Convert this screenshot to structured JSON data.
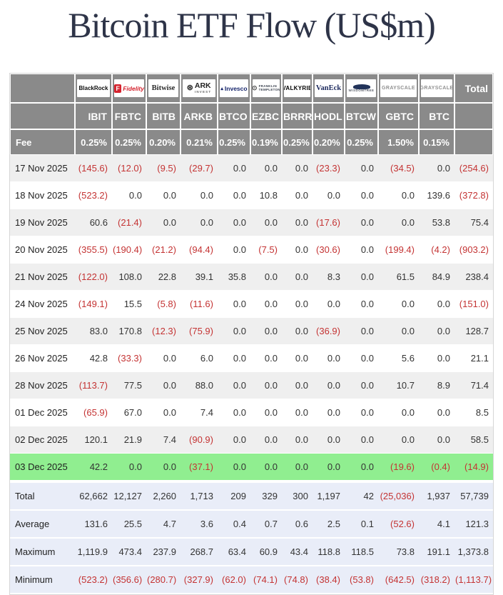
{
  "page": {
    "title": "Bitcoin ETF Flow (US$m)"
  },
  "colors": {
    "header_bg": "#8a8a8a",
    "negative_text": "#c43333",
    "positive_text": "#333333",
    "highlight_row": "#90ee90",
    "summary_row_bg": "#e9edf8",
    "stripe_row_bg": "#efefef",
    "title_text": "#2e3448"
  },
  "table": {
    "labels": {
      "fee_row": "Fee",
      "total_column": "Total"
    },
    "columns": [
      {
        "provider": "BlackRock",
        "ticker": "IBIT",
        "fee": "0.25%",
        "logo_style": "blackrock",
        "logo_text": "BlackRock"
      },
      {
        "provider": "Fidelity",
        "ticker": "FBTC",
        "fee": "0.25%",
        "logo_style": "fidelity",
        "logo_text": "Fidelity",
        "logo_mark": "F"
      },
      {
        "provider": "Bitwise",
        "ticker": "BITB",
        "fee": "0.20%",
        "logo_style": "bitwise",
        "logo_text": "Bitwise"
      },
      {
        "provider": "ARK Invest",
        "ticker": "ARKB",
        "fee": "0.21%",
        "logo_style": "ark",
        "logo_text": "ARK",
        "logo_sub": "INVEST"
      },
      {
        "provider": "Invesco",
        "ticker": "BTCO",
        "fee": "0.25%",
        "logo_style": "invesco",
        "logo_text": "Invesco"
      },
      {
        "provider": "Franklin Templeton",
        "ticker": "EZBC",
        "fee": "0.19%",
        "logo_style": "franklin",
        "logo_text": "FRANKLIN",
        "logo_sub": "TEMPLETON"
      },
      {
        "provider": "Valkyrie",
        "ticker": "BRRR",
        "fee": "0.25%",
        "logo_style": "valkyrie",
        "logo_text": "VALKYRIE"
      },
      {
        "provider": "VanEck",
        "ticker": "HODL",
        "fee": "0.20%",
        "logo_style": "vaneck",
        "logo_text": "VanEck"
      },
      {
        "provider": "WisdomTree",
        "ticker": "BTCW",
        "fee": "0.25%",
        "logo_style": "wisdomtree",
        "logo_text": "WISDOMTREE"
      },
      {
        "provider": "Grayscale",
        "ticker": "GBTC",
        "fee": "1.50%",
        "logo_style": "grayscale",
        "logo_text": "GRAYSCALE"
      },
      {
        "provider": "Grayscale",
        "ticker": "BTC",
        "fee": "0.15%",
        "logo_style": "grayscale",
        "logo_text": "GRAYSCALE"
      }
    ]
  },
  "chart_data": {
    "type": "table",
    "title": "Bitcoin ETF Flow (US$m)",
    "columns": [
      "IBIT",
      "FBTC",
      "BITB",
      "ARKB",
      "BTCO",
      "EZBC",
      "BRRR",
      "HODL",
      "BTCW",
      "GBTC",
      "BTC",
      "Total"
    ],
    "fees_percent": [
      0.25,
      0.25,
      0.2,
      0.21,
      0.25,
      0.19,
      0.25,
      0.2,
      0.25,
      1.5,
      0.15
    ],
    "value_format": "negative values shown in red parentheses",
    "rows": [
      {
        "date": "17 Nov 2025",
        "highlight": false,
        "values": [
          -145.6,
          -12.0,
          -9.5,
          -29.7,
          0,
          0,
          0,
          -23.3,
          0,
          -34.5,
          0,
          -254.6
        ]
      },
      {
        "date": "18 Nov 2025",
        "highlight": false,
        "values": [
          -523.2,
          0,
          0,
          0,
          0,
          10.8,
          0,
          0,
          0,
          0,
          139.6,
          -372.8
        ]
      },
      {
        "date": "19 Nov 2025",
        "highlight": false,
        "values": [
          60.6,
          -21.4,
          0,
          0,
          0,
          0,
          0,
          -17.6,
          0,
          0,
          53.8,
          75.4
        ]
      },
      {
        "date": "20 Nov 2025",
        "highlight": false,
        "values": [
          -355.5,
          -190.4,
          -21.2,
          -94.4,
          0,
          -7.5,
          0,
          -30.6,
          0,
          -199.4,
          -4.2,
          -903.2
        ]
      },
      {
        "date": "21 Nov 2025",
        "highlight": false,
        "values": [
          -122.0,
          108.0,
          22.8,
          39.1,
          35.8,
          0,
          0,
          8.3,
          0,
          61.5,
          84.9,
          238.4
        ]
      },
      {
        "date": "24 Nov 2025",
        "highlight": false,
        "values": [
          -149.1,
          15.5,
          -5.8,
          -11.6,
          0,
          0,
          0,
          0,
          0,
          0,
          0,
          -151.0
        ]
      },
      {
        "date": "25 Nov 2025",
        "highlight": false,
        "values": [
          83.0,
          170.8,
          -12.3,
          -75.9,
          0,
          0,
          0,
          -36.9,
          0,
          0,
          0,
          128.7
        ]
      },
      {
        "date": "26 Nov 2025",
        "highlight": false,
        "values": [
          42.8,
          -33.3,
          0,
          6.0,
          0,
          0,
          0,
          0,
          0,
          5.6,
          0,
          21.1
        ]
      },
      {
        "date": "28 Nov 2025",
        "highlight": false,
        "values": [
          -113.7,
          77.5,
          0,
          88.0,
          0,
          0,
          0,
          0,
          0,
          10.7,
          8.9,
          71.4
        ]
      },
      {
        "date": "01 Dec 2025",
        "highlight": false,
        "values": [
          -65.9,
          67.0,
          0,
          7.4,
          0,
          0,
          0,
          0,
          0,
          0,
          0,
          8.5
        ]
      },
      {
        "date": "02 Dec 2025",
        "highlight": false,
        "values": [
          120.1,
          21.9,
          7.4,
          -90.9,
          0,
          0,
          0,
          0,
          0,
          0,
          0,
          58.5
        ]
      },
      {
        "date": "03 Dec 2025",
        "highlight": true,
        "values": [
          42.2,
          0,
          0,
          -37.1,
          0,
          0,
          0,
          0,
          0,
          -19.6,
          -0.4,
          -14.9
        ]
      }
    ],
    "summary_rows": [
      {
        "label": "Total",
        "decimals": 0,
        "values": [
          62662,
          12127,
          2260,
          1713,
          209,
          329,
          300,
          1197,
          42,
          -25036,
          1937,
          57739
        ]
      },
      {
        "label": "Average",
        "decimals": 1,
        "values": [
          131.6,
          25.5,
          4.7,
          3.6,
          0.4,
          0.7,
          0.6,
          2.5,
          0.1,
          -52.6,
          4.1,
          121.3
        ]
      },
      {
        "label": "Maximum",
        "decimals": 1,
        "values": [
          1119.9,
          473.4,
          237.9,
          268.7,
          63.4,
          60.9,
          43.4,
          118.8,
          118.5,
          73.8,
          191.1,
          1373.8
        ]
      },
      {
        "label": "Minimum",
        "decimals": 1,
        "values": [
          -523.2,
          -356.6,
          -280.7,
          -327.9,
          -62.0,
          -74.1,
          -74.8,
          -38.4,
          -53.8,
          -642.5,
          -318.2,
          -1113.7
        ]
      }
    ]
  }
}
